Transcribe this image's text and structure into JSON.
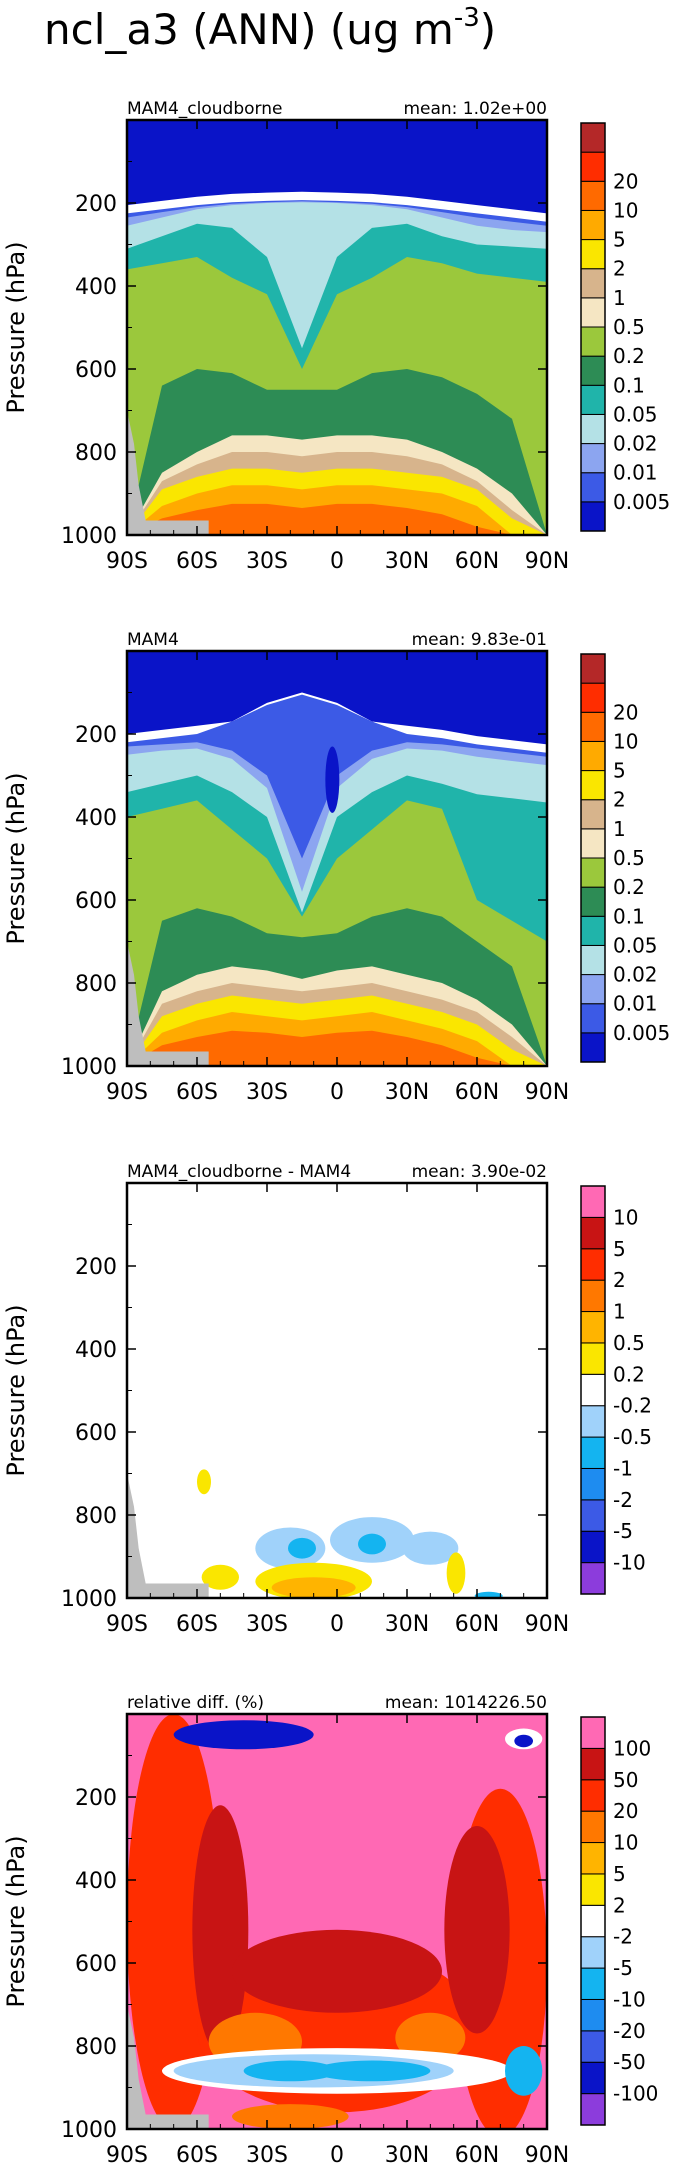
{
  "figure": {
    "title_main": "ncl_a3 (ANN) (ug m",
    "title_exp": "-3",
    "title_end": ")"
  },
  "chart_data": [
    {
      "type": "heatmap",
      "subtitle": "MAM4_cloudborne",
      "mean": "mean: 1.02e+00",
      "ylabel": "Pressure (hPa)",
      "xlabel": "",
      "x_ticks": [
        "90S",
        "60S",
        "30S",
        "0",
        "30N",
        "60N",
        "90N"
      ],
      "x_values": [
        -90,
        -60,
        -30,
        0,
        30,
        60,
        90
      ],
      "y_ticks": [
        "200",
        "400",
        "600",
        "800",
        "1000"
      ],
      "y_values": [
        200,
        400,
        600,
        800,
        1000
      ],
      "xlim": [
        -90,
        90
      ],
      "ylim": [
        1000,
        0
      ],
      "levels": [
        "0.005",
        "0.01",
        "0.02",
        "0.05",
        "0.1",
        "0.2",
        "0.5",
        "1",
        "2",
        "5",
        "10",
        "20"
      ],
      "colors": [
        "#0a14c8",
        "#3c5ae6",
        "#8ca5f0",
        "#b4e1e6",
        "#20b4aa",
        "#2d8c55",
        "#9bc83c",
        "#f5e6c3",
        "#d7b48c",
        "#fae600",
        "#ffaa00",
        "#ff6a00",
        "#ff2d00",
        "#b42828"
      ],
      "contours": [
        {
          "level": "0.005",
          "color": "#3c5ae6",
          "top": [
            225,
            215,
            205,
            198,
            195,
            193,
            195,
            198,
            205,
            215,
            225,
            235,
            245
          ]
        },
        {
          "level": "0.01",
          "color": "#8ca5f0",
          "top": [
            235,
            222,
            210,
            202,
            198,
            196,
            198,
            202,
            210,
            222,
            235,
            245,
            255
          ]
        },
        {
          "level": "0.02",
          "color": "#b4e1e6",
          "top": [
            255,
            235,
            215,
            205,
            200,
            198,
            200,
            205,
            215,
            235,
            255,
            265,
            270
          ]
        },
        {
          "level": "0.05",
          "color": "#20b4aa",
          "top": [
            310,
            280,
            250,
            260,
            330,
            550,
            330,
            260,
            250,
            280,
            300,
            305,
            310
          ]
        },
        {
          "level": "0.1",
          "color": "#9bc83c",
          "top": [
            360,
            345,
            330,
            380,
            420,
            600,
            420,
            380,
            330,
            345,
            370,
            380,
            390
          ]
        },
        {
          "level": "0.2",
          "color": "#2d8c55",
          "top": [
            1000,
            640,
            600,
            610,
            650,
            650,
            650,
            610,
            600,
            620,
            660,
            720,
            1000
          ]
        },
        {
          "level": "0.5",
          "color": "#f5e6c3",
          "top": [
            1000,
            850,
            800,
            760,
            760,
            770,
            760,
            760,
            770,
            800,
            840,
            900,
            1000
          ]
        },
        {
          "level": "1",
          "color": "#d7b48c",
          "top": [
            1000,
            870,
            830,
            800,
            800,
            810,
            800,
            800,
            810,
            830,
            870,
            940,
            1000
          ]
        },
        {
          "level": "2",
          "color": "#fae600",
          "top": [
            1000,
            890,
            860,
            840,
            840,
            850,
            840,
            840,
            850,
            860,
            890,
            960,
            1000
          ]
        },
        {
          "level": "5",
          "color": "#ffaa00",
          "top": [
            1000,
            930,
            900,
            880,
            880,
            890,
            880,
            880,
            890,
            900,
            930,
            1000,
            1000
          ]
        },
        {
          "level": "10",
          "color": "#ff6a00",
          "top": [
            1000,
            960,
            940,
            925,
            925,
            935,
            925,
            925,
            935,
            950,
            980,
            1000,
            1000
          ]
        }
      ],
      "top_band": {
        "color": "#0a14c8",
        "bottom": [
          205,
          195,
          185,
          178,
          175,
          173,
          175,
          178,
          185,
          195,
          205,
          215,
          225
        ]
      }
    },
    {
      "type": "heatmap",
      "subtitle": "MAM4",
      "mean": "mean: 9.83e-01",
      "ylabel": "Pressure (hPa)",
      "xlabel": "",
      "x_ticks": [
        "90S",
        "60S",
        "30S",
        "0",
        "30N",
        "60N",
        "90N"
      ],
      "x_values": [
        -90,
        -60,
        -30,
        0,
        30,
        60,
        90
      ],
      "y_ticks": [
        "200",
        "400",
        "600",
        "800",
        "1000"
      ],
      "y_values": [
        200,
        400,
        600,
        800,
        1000
      ],
      "xlim": [
        -90,
        90
      ],
      "ylim": [
        1000,
        0
      ],
      "levels": [
        "0.005",
        "0.01",
        "0.02",
        "0.05",
        "0.1",
        "0.2",
        "0.5",
        "1",
        "2",
        "5",
        "10",
        "20"
      ],
      "colors": [
        "#0a14c8",
        "#3c5ae6",
        "#8ca5f0",
        "#b4e1e6",
        "#20b4aa",
        "#2d8c55",
        "#9bc83c",
        "#f5e6c3",
        "#d7b48c",
        "#fae600",
        "#ffaa00",
        "#ff6a00",
        "#ff2d00",
        "#b42828"
      ],
      "contours": [
        {
          "level": "0.005",
          "color": "#3c5ae6",
          "top": [
            220,
            210,
            200,
            170,
            130,
            105,
            130,
            170,
            200,
            210,
            225,
            235,
            245
          ]
        },
        {
          "level": "0.01",
          "color": "#8ca5f0",
          "top": [
            230,
            225,
            220,
            240,
            300,
            500,
            300,
            240,
            220,
            225,
            235,
            245,
            255
          ]
        },
        {
          "level": "0.02",
          "color": "#b4e1e6",
          "top": [
            250,
            240,
            235,
            260,
            330,
            580,
            330,
            260,
            235,
            240,
            255,
            265,
            275
          ]
        },
        {
          "level": "0.05",
          "color": "#20b4aa",
          "top": [
            340,
            320,
            300,
            340,
            400,
            630,
            400,
            340,
            300,
            320,
            345,
            355,
            365
          ]
        },
        {
          "level": "0.1",
          "color": "#9bc83c",
          "top": [
            400,
            380,
            360,
            430,
            500,
            640,
            500,
            430,
            360,
            380,
            600,
            650,
            700
          ]
        },
        {
          "level": "0.2",
          "color": "#2d8c55",
          "top": [
            1000,
            650,
            620,
            640,
            680,
            690,
            680,
            640,
            620,
            640,
            700,
            760,
            1000
          ]
        },
        {
          "level": "0.5",
          "color": "#f5e6c3",
          "top": [
            1000,
            820,
            780,
            760,
            770,
            790,
            770,
            760,
            780,
            800,
            840,
            900,
            1000
          ]
        },
        {
          "level": "1",
          "color": "#d7b48c",
          "top": [
            1000,
            850,
            820,
            800,
            810,
            820,
            810,
            800,
            820,
            840,
            870,
            930,
            1000
          ]
        },
        {
          "level": "2",
          "color": "#fae600",
          "top": [
            1000,
            880,
            850,
            830,
            840,
            850,
            840,
            830,
            850,
            870,
            900,
            960,
            1000
          ]
        },
        {
          "level": "5",
          "color": "#ffaa00",
          "top": [
            1000,
            920,
            890,
            870,
            880,
            890,
            880,
            870,
            890,
            910,
            940,
            1000,
            1000
          ]
        },
        {
          "level": "10",
          "color": "#ff6a00",
          "top": [
            1000,
            950,
            930,
            915,
            920,
            930,
            920,
            915,
            930,
            950,
            980,
            1000,
            1000
          ]
        }
      ],
      "top_band": {
        "color": "#0a14c8",
        "bottom": [
          200,
          190,
          180,
          170,
          125,
          100,
          125,
          170,
          180,
          190,
          205,
          215,
          225
        ]
      },
      "core": {
        "color": "#0a14c8",
        "lat": -2,
        "p": 310,
        "rlat": 3,
        "rp": 80
      }
    },
    {
      "type": "heatmap",
      "subtitle": "MAM4_cloudborne - MAM4",
      "mean": "mean: 3.90e-02",
      "ylabel": "Pressure (hPa)",
      "xlabel": "",
      "x_ticks": [
        "90S",
        "60S",
        "30S",
        "0",
        "30N",
        "60N",
        "90N"
      ],
      "x_values": [
        -90,
        -60,
        -30,
        0,
        30,
        60,
        90
      ],
      "y_ticks": [
        "200",
        "400",
        "600",
        "800",
        "1000"
      ],
      "y_values": [
        200,
        400,
        600,
        800,
        1000
      ],
      "xlim": [
        -90,
        90
      ],
      "ylim": [
        1000,
        0
      ],
      "levels": [
        "-10",
        "-5",
        "-2",
        "-1",
        "-0.5",
        "-0.2",
        "0.2",
        "0.5",
        "1",
        "2",
        "5",
        "10"
      ],
      "colors": [
        "#8c3cdc",
        "#0a14c8",
        "#3c5ae6",
        "#1e8cf0",
        "#14b4f0",
        "#a0d2fa",
        "#ffffff",
        "#fae600",
        "#ffb400",
        "#ff7800",
        "#ff2d00",
        "#c81414",
        "#ff69b4"
      ],
      "blobs": [
        {
          "color": "#fae600",
          "lat": -57,
          "p": 720,
          "rlat": 3,
          "rp": 30
        },
        {
          "color": "#a0d2fa",
          "lat": -20,
          "p": 880,
          "rlat": 15,
          "rp": 50
        },
        {
          "color": "#a0d2fa",
          "lat": 15,
          "p": 860,
          "rlat": 18,
          "rp": 55
        },
        {
          "color": "#a0d2fa",
          "lat": 40,
          "p": 880,
          "rlat": 12,
          "rp": 40
        },
        {
          "color": "#14b4f0",
          "lat": -15,
          "p": 880,
          "rlat": 6,
          "rp": 25
        },
        {
          "color": "#14b4f0",
          "lat": 15,
          "p": 870,
          "rlat": 6,
          "rp": 25
        },
        {
          "color": "#fae600",
          "lat": -50,
          "p": 950,
          "rlat": 8,
          "rp": 30
        },
        {
          "color": "#fae600",
          "lat": -10,
          "p": 960,
          "rlat": 25,
          "rp": 45
        },
        {
          "color": "#ffb400",
          "lat": -10,
          "p": 975,
          "rlat": 18,
          "rp": 25
        },
        {
          "color": "#fae600",
          "lat": 51,
          "p": 940,
          "rlat": 4,
          "rp": 50
        },
        {
          "color": "#14b4f0",
          "lat": 65,
          "p": 995,
          "rlat": 6,
          "rp": 10
        }
      ]
    },
    {
      "type": "heatmap",
      "subtitle": "relative diff. (%)",
      "mean": "mean: 1014226.50",
      "ylabel": "Pressure (hPa)",
      "xlabel": "",
      "x_ticks": [
        "90S",
        "60S",
        "30S",
        "0",
        "30N",
        "60N",
        "90N"
      ],
      "x_values": [
        -90,
        -60,
        -30,
        0,
        30,
        60,
        90
      ],
      "y_ticks": [
        "200",
        "400",
        "600",
        "800",
        "1000"
      ],
      "y_values": [
        200,
        400,
        600,
        800,
        1000
      ],
      "xlim": [
        -90,
        90
      ],
      "ylim": [
        1000,
        0
      ],
      "levels": [
        "-100",
        "-50",
        "-20",
        "-10",
        "-5",
        "-2",
        "2",
        "5",
        "10",
        "20",
        "50",
        "100"
      ],
      "colors": [
        "#8c3cdc",
        "#0a14c8",
        "#3c5ae6",
        "#1e8cf0",
        "#14b4f0",
        "#a0d2fa",
        "#ffffff",
        "#fae600",
        "#ffb400",
        "#ff7800",
        "#ff2d00",
        "#c81414",
        "#ff69b4"
      ],
      "base_color": "#ff69b4",
      "blobs": [
        {
          "color": "#ff2d00",
          "lat": -70,
          "p": 500,
          "rlat": 20,
          "rp": 500
        },
        {
          "color": "#ff2d00",
          "lat": 0,
          "p": 760,
          "rlat": 60,
          "rp": 200
        },
        {
          "color": "#ff2d00",
          "lat": 70,
          "p": 600,
          "rlat": 20,
          "rp": 420
        },
        {
          "color": "#c81414",
          "lat": -50,
          "p": 520,
          "rlat": 12,
          "rp": 300
        },
        {
          "color": "#c81414",
          "lat": 0,
          "p": 620,
          "rlat": 45,
          "rp": 100
        },
        {
          "color": "#c81414",
          "lat": 60,
          "p": 520,
          "rlat": 14,
          "rp": 250
        },
        {
          "color": "#ff7800",
          "lat": -35,
          "p": 790,
          "rlat": 20,
          "rp": 70
        },
        {
          "color": "#ff7800",
          "lat": 40,
          "p": 780,
          "rlat": 15,
          "rp": 60
        },
        {
          "color": "#ffffff",
          "lat": 0,
          "p": 860,
          "rlat": 75,
          "rp": 55
        },
        {
          "color": "#a0d2fa",
          "lat": -10,
          "p": 860,
          "rlat": 60,
          "rp": 40
        },
        {
          "color": "#14b4f0",
          "lat": -20,
          "p": 860,
          "rlat": 20,
          "rp": 25
        },
        {
          "color": "#14b4f0",
          "lat": 15,
          "p": 860,
          "rlat": 25,
          "rp": 25
        },
        {
          "color": "#14b4f0",
          "lat": 80,
          "p": 860,
          "rlat": 8,
          "rp": 60
        },
        {
          "color": "#ff7800",
          "lat": -20,
          "p": 970,
          "rlat": 25,
          "rp": 30
        },
        {
          "color": "#0a14c8",
          "lat": -40,
          "p": 50,
          "rlat": 30,
          "rp": 35
        },
        {
          "color": "#ffffff",
          "lat": 80,
          "p": 60,
          "rlat": 8,
          "rp": 25
        },
        {
          "color": "#0a14c8",
          "lat": 80,
          "p": 65,
          "rlat": 4,
          "rp": 15
        }
      ]
    }
  ]
}
